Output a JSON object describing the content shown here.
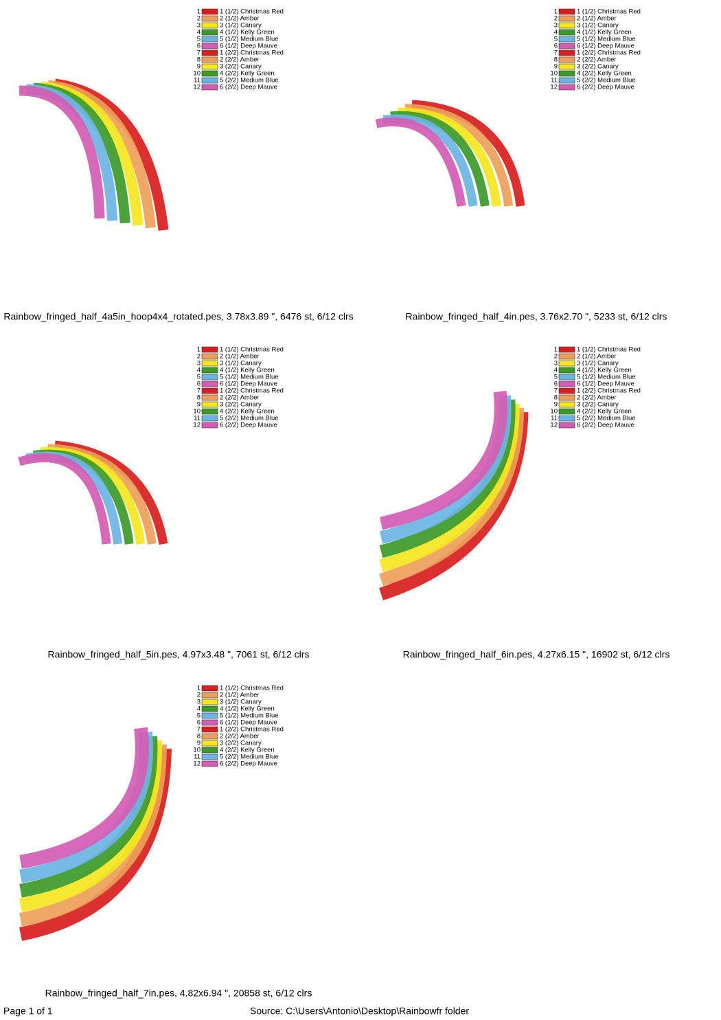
{
  "designs": [
    {
      "caption": "Rainbow_fringed_half_4a5in_hoop4x4_rotated.pes, 3.78x3.89 \", 6476 st, 6/12 clrs",
      "colors": [
        [
          1,
          "1 (1/2) Christmas Red",
          "#d81e1e"
        ],
        [
          2,
          "2 (1/2) Amber",
          "#eea05a"
        ],
        [
          3,
          "3 (1/2) Canary",
          "#f5e61e"
        ],
        [
          4,
          "4 (1/2) Kelly Green",
          "#3c9a2a"
        ],
        [
          5,
          "5 (1/2) Medium Blue",
          "#6cb4e4"
        ],
        [
          6,
          "6 (1/2) Deep Mauve",
          "#d45cb4"
        ],
        [
          7,
          "1 (2/2) Christmas Red",
          "#d81e1e"
        ],
        [
          8,
          "2 (2/2) Amber",
          "#eea05a"
        ],
        [
          9,
          "3 (2/2) Canary",
          "#f5e61e"
        ],
        [
          10,
          "4 (2/2) Kelly Green",
          "#3c9a2a"
        ],
        [
          11,
          "5 (2/2) Medium Blue",
          "#6cb4e4"
        ],
        [
          12,
          "6 (2/2) Deep Mauve",
          "#d45cb4"
        ]
      ]
    },
    {
      "caption": "Rainbow_fringed_half_4in.pes, 3.76x2.70 \", 5233 st, 6/12 clrs",
      "colors": [
        [
          1,
          "1 (1/2) Christmas Red",
          "#d81e1e"
        ],
        [
          2,
          "2 (1/2) Amber",
          "#eea05a"
        ],
        [
          3,
          "3 (1/2) Canary",
          "#f5e61e"
        ],
        [
          4,
          "4 (1/2) Kelly Green",
          "#3c9a2a"
        ],
        [
          5,
          "5 (1/2) Medium Blue",
          "#6cb4e4"
        ],
        [
          6,
          "6 (1/2) Deep Mauve",
          "#d45cb4"
        ],
        [
          7,
          "1 (2/2) Christmas Red",
          "#d81e1e"
        ],
        [
          8,
          "2 (2/2) Amber",
          "#eea05a"
        ],
        [
          9,
          "3 (2/2) Canary",
          "#f5e61e"
        ],
        [
          10,
          "4 (2/2) Kelly Green",
          "#3c9a2a"
        ],
        [
          11,
          "5 (2/2) Medium Blue",
          "#6cb4e4"
        ],
        [
          12,
          "6 (2/2) Deep Mauve",
          "#d45cb4"
        ]
      ]
    },
    {
      "caption": "Rainbow_fringed_half_5in.pes, 4.97x3.48 \", 7061 st, 6/12 clrs",
      "colors": [
        [
          1,
          "1 (1/2) Christmas Red",
          "#d81e1e"
        ],
        [
          2,
          "2 (1/2) Amber",
          "#eea05a"
        ],
        [
          3,
          "3 (1/2) Canary",
          "#f5e61e"
        ],
        [
          4,
          "4 (1/2) Kelly Green",
          "#3c9a2a"
        ],
        [
          5,
          "5 (1/2) Medium Blue",
          "#6cb4e4"
        ],
        [
          6,
          "6 (1/2) Deep Mauve",
          "#d45cb4"
        ],
        [
          7,
          "1 (2/2) Christmas Red",
          "#d81e1e"
        ],
        [
          8,
          "2 (2/2) Amber",
          "#eea05a"
        ],
        [
          9,
          "3 (2/2) Canary",
          "#f5e61e"
        ],
        [
          10,
          "4 (2/2) Kelly Green",
          "#3c9a2a"
        ],
        [
          11,
          "5 (2/2) Medium Blue",
          "#6cb4e4"
        ],
        [
          12,
          "6 (2/2) Deep Mauve",
          "#d45cb4"
        ]
      ]
    },
    {
      "caption": "Rainbow_fringed_half_6in.pes, 4.27x6.15 \", 16902 st, 6/12 clrs",
      "colors": [
        [
          1,
          "1 (1/2) Christmas Red",
          "#d81e1e"
        ],
        [
          2,
          "2 (1/2) Amber",
          "#eea05a"
        ],
        [
          3,
          "3 (1/2) Canary",
          "#f5e61e"
        ],
        [
          4,
          "4 (1/2) Kelly Green",
          "#3c9a2a"
        ],
        [
          5,
          "5 (1/2) Medium Blue",
          "#6cb4e4"
        ],
        [
          6,
          "6 (1/2) Deep Mauve",
          "#d45cb4"
        ],
        [
          7,
          "1 (2/2) Christmas Red",
          "#d81e1e"
        ],
        [
          8,
          "2 (2/2) Amber",
          "#eea05a"
        ],
        [
          9,
          "3 (2/2) Canary",
          "#f5e61e"
        ],
        [
          10,
          "4 (2/2) Kelly Green",
          "#3c9a2a"
        ],
        [
          11,
          "5 (2/2) Medium Blue",
          "#6cb4e4"
        ],
        [
          12,
          "6 (2/2) Deep Mauve",
          "#d45cb4"
        ]
      ]
    },
    {
      "caption": "Rainbow_fringed_half_7in.pes, 4.82x6.94 \", 20858 st, 6/12 clrs",
      "colors": [
        [
          1,
          "1 (1/2) Christmas Red",
          "#d81e1e"
        ],
        [
          2,
          "2 (1/2) Amber",
          "#eea05a"
        ],
        [
          3,
          "3 (1/2) Canary",
          "#f5e61e"
        ],
        [
          4,
          "4 (1/2) Kelly Green",
          "#3c9a2a"
        ],
        [
          5,
          "5 (1/2) Medium Blue",
          "#6cb4e4"
        ],
        [
          6,
          "6 (1/2) Deep Mauve",
          "#d45cb4"
        ],
        [
          7,
          "1 (2/2) Christmas Red",
          "#d81e1e"
        ],
        [
          8,
          "2 (2/2) Amber",
          "#eea05a"
        ],
        [
          9,
          "3 (2/2) Canary",
          "#f5e61e"
        ],
        [
          10,
          "4 (2/2) Kelly Green",
          "#3c9a2a"
        ],
        [
          11,
          "5 (2/2) Medium Blue",
          "#6cb4e4"
        ],
        [
          12,
          "6 (2/2) Deep Mauve",
          "#d45cb4"
        ]
      ]
    }
  ],
  "footer": {
    "page": "Page 1 of 1",
    "source": "Source: C:\\Users\\Antonio\\Desktop\\Rainbowfr folder"
  }
}
